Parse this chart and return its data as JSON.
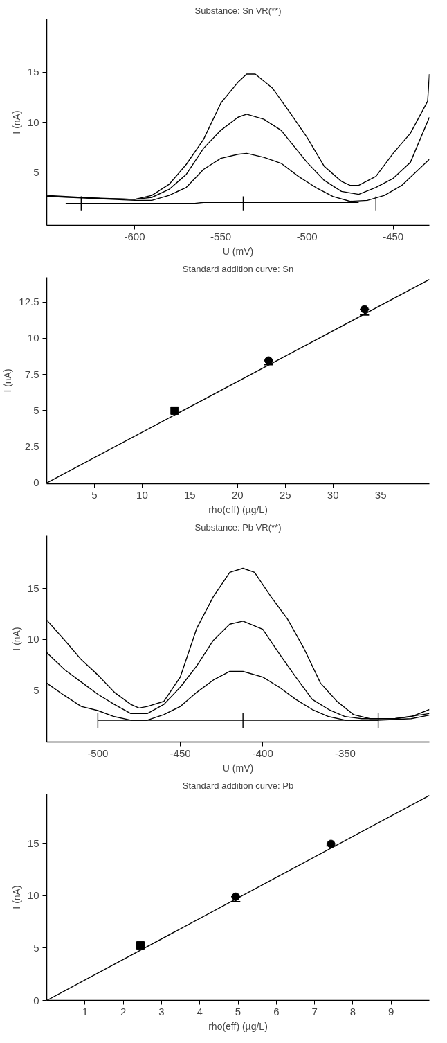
{
  "chart_data": [
    {
      "type": "line",
      "title": "Substance: Sn VR(**)",
      "xlabel": "U (mV)",
      "ylabel": "I (nA)",
      "xlim": [
        -651,
        -429
      ],
      "ylim": [
        -0.3,
        20.3
      ],
      "xticks": [
        -600,
        -550,
        -500,
        -450
      ],
      "yticks": [
        5,
        10,
        15
      ],
      "grid": false,
      "line_style": "solid",
      "series": [
        {
          "color": "#000000",
          "x": [
            -651,
            -620,
            -600,
            -590,
            -580,
            -570,
            -560,
            -550,
            -540,
            -535,
            -530,
            -520,
            -510,
            -500,
            -490,
            -480,
            -475,
            -470,
            -460,
            -450,
            -440,
            -430,
            -429
          ],
          "values": [
            2.7,
            2.4,
            2.3,
            2.7,
            3.8,
            5.8,
            8.3,
            11.9,
            14.0,
            14.8,
            14.8,
            13.4,
            11.0,
            8.5,
            5.6,
            4.1,
            3.7,
            3.7,
            4.6,
            6.9,
            8.9,
            12.1,
            14.8
          ]
        },
        {
          "color": "#000000",
          "x": [
            -651,
            -600,
            -590,
            -580,
            -570,
            -560,
            -550,
            -540,
            -535,
            -525,
            -515,
            -500,
            -490,
            -480,
            -470,
            -460,
            -450,
            -440,
            -429
          ],
          "values": [
            2.6,
            2.3,
            2.5,
            3.3,
            4.8,
            7.4,
            9.2,
            10.5,
            10.8,
            10.3,
            9.2,
            6.0,
            4.2,
            3.1,
            2.8,
            3.5,
            4.4,
            6.0,
            10.5
          ]
        },
        {
          "color": "#000000",
          "x": [
            -651,
            -600,
            -590,
            -580,
            -570,
            -560,
            -550,
            -540,
            -535,
            -525,
            -515,
            -505,
            -495,
            -485,
            -475,
            -465,
            -455,
            -445,
            -429
          ],
          "values": [
            2.6,
            2.2,
            2.2,
            2.7,
            3.5,
            5.3,
            6.4,
            6.8,
            6.9,
            6.5,
            5.9,
            4.6,
            3.5,
            2.6,
            2.1,
            2.2,
            2.7,
            3.7,
            6.3
          ]
        },
        {
          "color": "#000000",
          "x": [
            -640,
            -565,
            -560,
            -470
          ],
          "values": [
            1.9,
            1.9,
            2.0,
            2.0
          ]
        },
        {
          "color": "#000000",
          "x": [
            -631,
            -631
          ],
          "values": [
            1.2,
            2.6
          ]
        },
        {
          "color": "#000000",
          "x": [
            -537,
            -537
          ],
          "values": [
            1.2,
            2.6
          ]
        },
        {
          "color": "#000000",
          "x": [
            -460,
            -460
          ],
          "values": [
            1.2,
            2.6
          ]
        }
      ]
    },
    {
      "type": "scatter",
      "title": "Standard addition curve: Sn",
      "xlabel": "rho(eff) (µg/L)",
      "ylabel": "I (nA)",
      "xlim": [
        0,
        40.1
      ],
      "ylim": [
        -0.05,
        14.2
      ],
      "xticks": [
        5,
        10,
        15,
        20,
        25,
        30,
        35
      ],
      "yticks": [
        0,
        2.5,
        5,
        7.5,
        10,
        12.5
      ],
      "grid": false,
      "series": [
        {
          "type": "line",
          "color": "#000000",
          "x": [
            0,
            40.1
          ],
          "values": [
            0,
            14.05
          ]
        },
        {
          "color": "#000000",
          "marker": "square",
          "x": [
            13.4
          ],
          "values": [
            5.0
          ],
          "errors": [
            null
          ]
        },
        {
          "color": "#000000",
          "marker": "circle",
          "x": [
            23.25,
            33.3
          ],
          "values": [
            8.46,
            12.0
          ],
          "errors": [
            [
              8.16,
              8.46
            ],
            [
              11.6,
              12.0
            ]
          ]
        }
      ]
    },
    {
      "type": "line",
      "title": "Substance: Pb VR(**)",
      "xlabel": "U (mV)",
      "ylabel": "I (nA)",
      "xlim": [
        -531,
        -299
      ],
      "ylim": [
        -0.1,
        20.2
      ],
      "xticks": [
        -500,
        -450,
        -400,
        -350
      ],
      "yticks": [
        5,
        10,
        15
      ],
      "grid": false,
      "line_style": "solid",
      "series": [
        {
          "color": "#000000",
          "x": [
            -531,
            -520,
            -510,
            -500,
            -490,
            -480,
            -475,
            -470,
            -460,
            -450,
            -440,
            -430,
            -420,
            -412,
            -405,
            -395,
            -385,
            -375,
            -365,
            -355,
            -345,
            -335,
            -320,
            -310,
            -299
          ],
          "values": [
            11.9,
            9.9,
            8.0,
            6.5,
            4.8,
            3.6,
            3.25,
            3.4,
            3.9,
            6.3,
            11.1,
            14.2,
            16.6,
            17.0,
            16.6,
            14.2,
            12.0,
            9.1,
            5.7,
            3.9,
            2.6,
            2.2,
            2.2,
            2.4,
            3.1
          ]
        },
        {
          "color": "#000000",
          "x": [
            -531,
            -520,
            -510,
            -500,
            -490,
            -480,
            -470,
            -460,
            -450,
            -440,
            -430,
            -420,
            -412,
            -400,
            -390,
            -380,
            -370,
            -360,
            -350,
            -340,
            -320,
            -299
          ],
          "values": [
            8.7,
            7.0,
            5.8,
            4.6,
            3.6,
            2.7,
            2.7,
            3.6,
            5.3,
            7.4,
            9.9,
            11.5,
            11.8,
            11.0,
            8.6,
            6.3,
            4.1,
            3.1,
            2.4,
            2.2,
            2.2,
            2.7
          ]
        },
        {
          "color": "#000000",
          "x": [
            -531,
            -520,
            -510,
            -500,
            -490,
            -480,
            -470,
            -460,
            -450,
            -440,
            -430,
            -420,
            -412,
            -400,
            -390,
            -380,
            -370,
            -360,
            -350,
            -330,
            -310,
            -299
          ],
          "values": [
            5.7,
            4.45,
            3.4,
            3.0,
            2.4,
            2.05,
            2.05,
            2.6,
            3.4,
            4.8,
            6.0,
            6.85,
            6.85,
            6.3,
            5.3,
            4.1,
            3.1,
            2.4,
            2.05,
            2.05,
            2.2,
            2.55
          ]
        },
        {
          "color": "#000000",
          "x": [
            -500,
            -330
          ],
          "values": [
            2.05,
            2.05
          ]
        },
        {
          "color": "#000000",
          "x": [
            -500,
            -500
          ],
          "values": [
            1.3,
            2.8
          ]
        },
        {
          "color": "#000000",
          "x": [
            -412,
            -412
          ],
          "values": [
            1.3,
            2.8
          ]
        },
        {
          "color": "#000000",
          "x": [
            -330,
            -330
          ],
          "values": [
            1.3,
            2.8
          ]
        }
      ]
    },
    {
      "type": "scatter",
      "title": "Standard addition curve: Pb",
      "xlabel": "rho(eff) (µg/L)",
      "ylabel": "I (nA)",
      "xlim": [
        0,
        10
      ],
      "ylim": [
        0,
        19.7
      ],
      "xticks": [
        1,
        2,
        3,
        4,
        5,
        6,
        7,
        8,
        9
      ],
      "yticks": [
        0,
        5,
        10,
        15
      ],
      "grid": false,
      "series": [
        {
          "type": "line",
          "color": "#000000",
          "x": [
            0,
            10
          ],
          "values": [
            0,
            19.56
          ]
        },
        {
          "color": "#000000",
          "marker": "square",
          "x": [
            2.45
          ],
          "values": [
            5.25
          ],
          "errors": [
            [
              5.03,
              5.25
            ]
          ]
        },
        {
          "color": "#000000",
          "marker": "circle",
          "x": [
            4.94,
            7.43
          ],
          "values": [
            9.9,
            14.94
          ],
          "errors": [
            [
              9.43,
              9.9
            ],
            [
              14.75,
              14.94
            ]
          ]
        }
      ]
    }
  ]
}
